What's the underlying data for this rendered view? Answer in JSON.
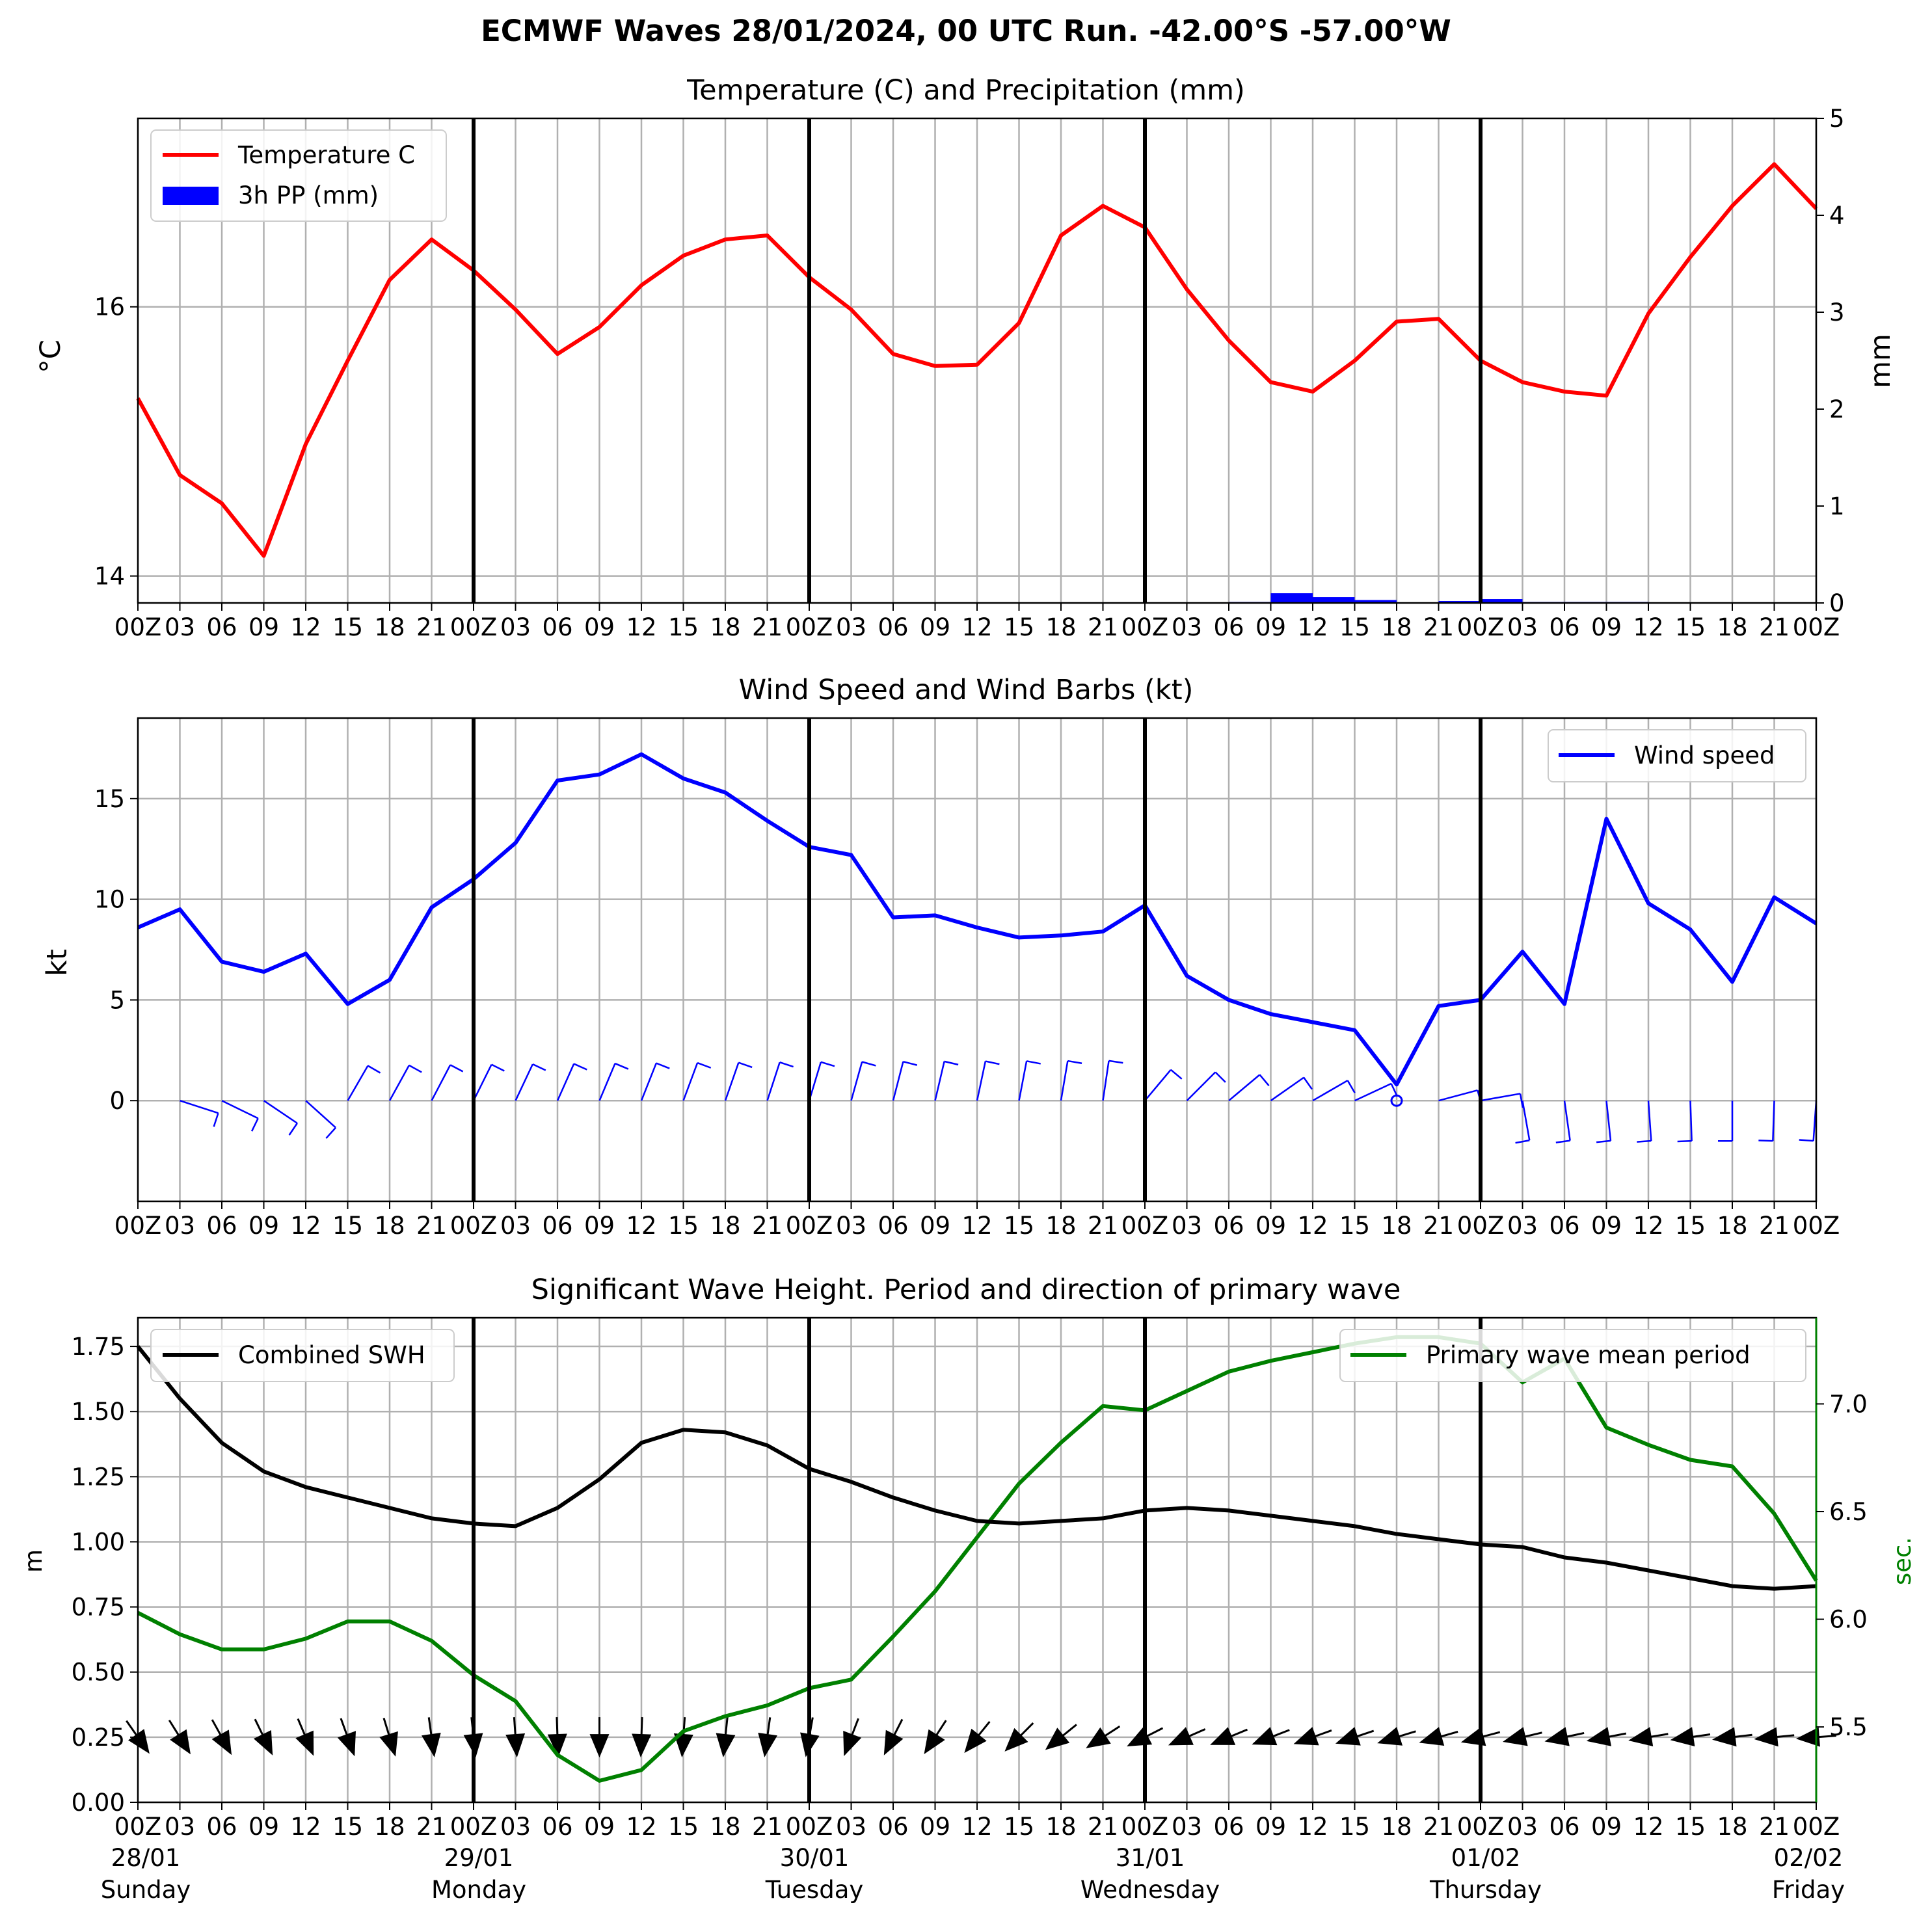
{
  "figure_title": "ECMWF Waves 28/01/2024, 00 UTC Run. -42.00°S -57.00°W",
  "x_ticks": [
    "00Z",
    "03",
    "06",
    "09",
    "12",
    "15",
    "18",
    "21",
    "00Z",
    "03",
    "06",
    "09",
    "12",
    "15",
    "18",
    "21",
    "00Z",
    "03",
    "06",
    "09",
    "12",
    "15",
    "18",
    "21",
    "00Z",
    "03",
    "06",
    "09",
    "12",
    "15",
    "18",
    "21",
    "00Z",
    "03",
    "06",
    "09",
    "12",
    "15",
    "18",
    "21",
    "00Z"
  ],
  "day_labels": [
    {
      "date": "28/01",
      "weekday": "Sunday"
    },
    {
      "date": "29/01",
      "weekday": "Monday"
    },
    {
      "date": "30/01",
      "weekday": "Tuesday"
    },
    {
      "date": "31/01",
      "weekday": "Wednesday"
    },
    {
      "date": "01/02",
      "weekday": "Thursday"
    },
    {
      "date": "02/02",
      "weekday": "Friday"
    }
  ],
  "colors": {
    "temperature": "#ff0000",
    "precip": "#0000ff",
    "wind": "#0000ff",
    "swh": "#000000",
    "period": "#008000",
    "grid": "#b0b0b0"
  },
  "chart_data": [
    {
      "type": "line",
      "title": "Temperature (C) and Precipitation (mm)",
      "ylabel": "$^\\circ$C",
      "y2label": "mm",
      "ylim": [
        13.8,
        17.4
      ],
      "y2lim": [
        0,
        5
      ],
      "yticks": [
        "14",
        "16"
      ],
      "y2ticks": [
        "0",
        "1",
        "2",
        "3",
        "4",
        "5"
      ],
      "legend": [
        "Temperature C",
        "3h PP (mm)"
      ],
      "legend_position": "upper-left",
      "x_hours": [
        0,
        3,
        6,
        9,
        12,
        15,
        18,
        21,
        24,
        27,
        30,
        33,
        36,
        39,
        42,
        45,
        48,
        51,
        54,
        57,
        60,
        63,
        66,
        69,
        72,
        75,
        78,
        81,
        84,
        87,
        90,
        93,
        96,
        99,
        102,
        105,
        108,
        111,
        114,
        117,
        120
      ],
      "temperature": [
        15.32,
        14.75,
        14.54,
        14.15,
        14.98,
        15.6,
        16.2,
        16.5,
        16.27,
        15.98,
        15.65,
        15.85,
        16.16,
        16.38,
        16.5,
        16.53,
        16.22,
        15.98,
        15.65,
        15.56,
        15.57,
        15.88,
        16.53,
        16.75,
        16.59,
        16.13,
        15.75,
        15.44,
        15.37,
        15.6,
        15.89,
        15.91,
        15.6,
        15.44,
        15.37,
        15.34,
        15.95,
        16.37,
        16.75,
        17.06,
        16.73
      ],
      "precip_3h": [
        0,
        0,
        0,
        0,
        0,
        0,
        0,
        0,
        0,
        0,
        0,
        0,
        0,
        0,
        0,
        0,
        0,
        0,
        0,
        0,
        0,
        0,
        0,
        0,
        0,
        0,
        0.01,
        0.1,
        0.06,
        0.03,
        0,
        0.02,
        0.04,
        0.01,
        0.01,
        0.01,
        0,
        0,
        0,
        0
      ],
      "y_label_text": "°C"
    },
    {
      "type": "line",
      "title": "Wind Speed and Wind Barbs (kt)",
      "ylabel": "kt",
      "ylim": [
        -5,
        19
      ],
      "yticks": [
        "0",
        "5",
        "10",
        "15"
      ],
      "legend": [
        "Wind speed"
      ],
      "legend_position": "upper-right",
      "x_hours": [
        0,
        3,
        6,
        9,
        12,
        15,
        18,
        21,
        24,
        27,
        30,
        33,
        36,
        39,
        42,
        45,
        48,
        51,
        54,
        57,
        60,
        63,
        66,
        69,
        72,
        75,
        78,
        81,
        84,
        87,
        90,
        93,
        96,
        99,
        102,
        105,
        108,
        111,
        114,
        117,
        120
      ],
      "wind_speed": [
        8.6,
        9.5,
        6.9,
        6.4,
        7.3,
        4.8,
        6.0,
        9.6,
        11.0,
        12.8,
        15.9,
        16.2,
        17.2,
        16.0,
        15.3,
        13.9,
        12.6,
        12.2,
        9.1,
        9.2,
        8.6,
        8.1,
        8.2,
        8.4,
        9.7,
        6.2,
        5.0,
        4.3,
        3.9,
        3.5,
        0.8,
        4.7,
        5.0,
        7.4,
        4.8,
        14.0,
        9.8,
        8.5,
        5.9,
        10.1,
        8.8
      ],
      "barbs": "wind barbs along y = 0 showing direction at each 3-hourly step"
    },
    {
      "type": "line",
      "title": "Significant Wave Height. Period and direction of primary wave",
      "ylabel": "m",
      "y2label": "sec.",
      "ylim": [
        0,
        1.86
      ],
      "y2lim": [
        5.15,
        7.4
      ],
      "yticks": [
        "0.00",
        "0.25",
        "0.50",
        "0.75",
        "1.00",
        "1.25",
        "1.50",
        "1.75"
      ],
      "y2ticks": [
        "5.5",
        "6.0",
        "6.5",
        "7.0"
      ],
      "legend": [
        "Combined SWH",
        "Primary wave mean period"
      ],
      "x_hours": [
        0,
        3,
        6,
        9,
        12,
        15,
        18,
        21,
        24,
        27,
        30,
        33,
        36,
        39,
        42,
        45,
        48,
        51,
        54,
        57,
        60,
        63,
        66,
        69,
        72,
        75,
        78,
        81,
        84,
        87,
        90,
        93,
        96,
        99,
        102,
        105,
        108,
        111,
        114,
        117,
        120
      ],
      "swh": [
        1.75,
        1.55,
        1.38,
        1.27,
        1.21,
        1.17,
        1.13,
        1.09,
        1.07,
        1.06,
        1.13,
        1.24,
        1.38,
        1.43,
        1.42,
        1.37,
        1.28,
        1.23,
        1.17,
        1.12,
        1.08,
        1.07,
        1.08,
        1.09,
        1.12,
        1.13,
        1.12,
        1.1,
        1.08,
        1.06,
        1.03,
        1.01,
        0.99,
        0.98,
        0.94,
        0.92,
        0.89,
        0.86,
        0.83,
        0.82,
        0.83
      ],
      "period": [
        6.03,
        5.93,
        5.86,
        5.86,
        5.91,
        5.99,
        5.99,
        5.9,
        5.74,
        5.62,
        5.37,
        5.25,
        5.3,
        5.48,
        5.55,
        5.6,
        5.68,
        5.72,
        5.92,
        6.13,
        6.38,
        6.63,
        6.82,
        6.99,
        6.97,
        7.06,
        7.15,
        7.2,
        7.24,
        7.28,
        7.31,
        7.31,
        7.28,
        7.1,
        7.21,
        6.89,
        6.81,
        6.74,
        6.71,
        6.49,
        6.18
      ],
      "arrows": "primary wave direction arrows along 0.25 m"
    }
  ]
}
